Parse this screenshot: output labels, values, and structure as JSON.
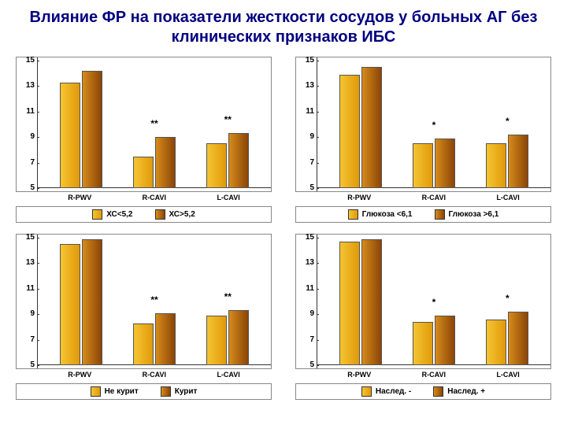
{
  "title": "Влияние ФР на показатели жесткости сосудов у больных АГ без клинических признаков ИБС",
  "ylim": [
    5,
    15
  ],
  "yticks": [
    5,
    7,
    9,
    11,
    13,
    15
  ],
  "categories": [
    "R-PWV",
    "R-CAVI",
    "L-CAVI"
  ],
  "colors": {
    "a": "#f0b41e",
    "b": "#b0610e"
  },
  "panels": [
    {
      "legend": [
        "ХС<5,2",
        "ХС>5,2"
      ],
      "series_a": [
        13.3,
        7.5,
        8.5
      ],
      "series_b": [
        14.2,
        9.0,
        9.3
      ],
      "sig": [
        "",
        "**",
        "**"
      ]
    },
    {
      "legend": [
        "Глюкоза <6,1",
        "Глюкоза >6,1"
      ],
      "series_a": [
        13.9,
        8.5,
        8.5
      ],
      "series_b": [
        14.5,
        8.9,
        9.2
      ],
      "sig": [
        "",
        "*",
        "*"
      ]
    },
    {
      "legend": [
        "Не курит",
        "Курит"
      ],
      "series_a": [
        14.5,
        8.3,
        8.9
      ],
      "series_b": [
        14.9,
        9.1,
        9.3
      ],
      "sig": [
        "",
        "**",
        "**"
      ]
    },
    {
      "legend": [
        "Наслед. -",
        "Наслед. +"
      ],
      "series_a": [
        14.7,
        8.4,
        8.6
      ],
      "series_b": [
        14.9,
        8.9,
        9.2
      ],
      "sig": [
        "",
        "*",
        "*"
      ]
    }
  ]
}
